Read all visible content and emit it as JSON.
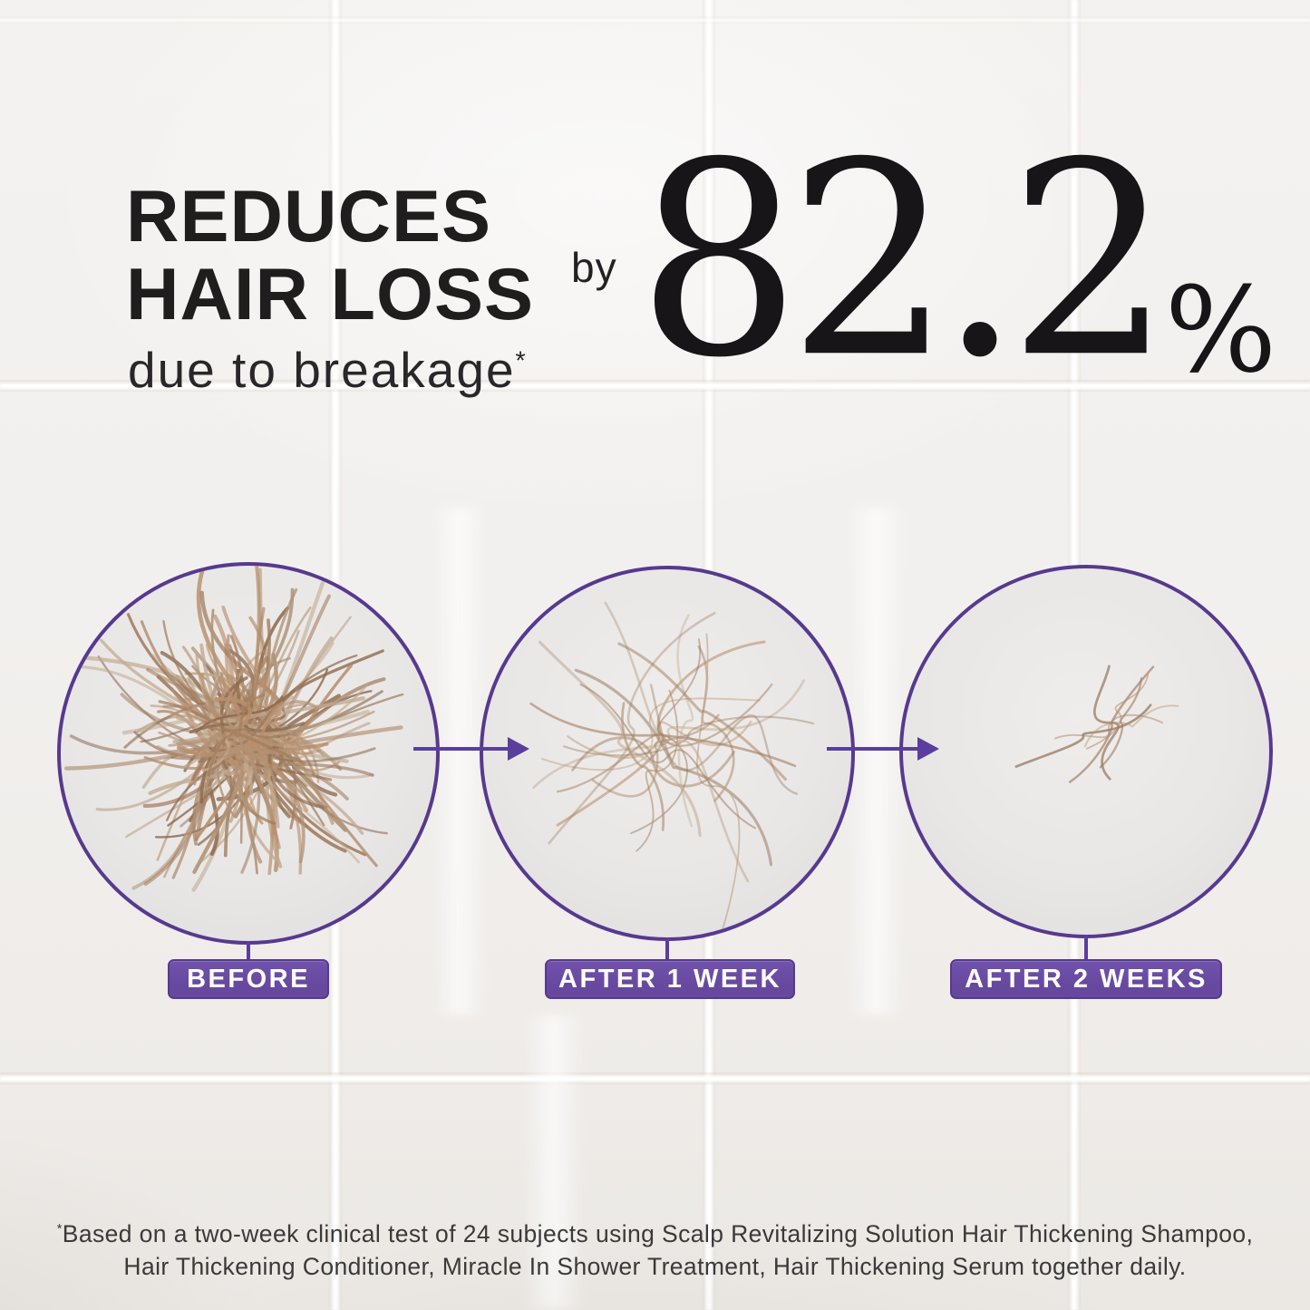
{
  "headline": {
    "line1": "REDUCES",
    "line2": "HAIR LOSS",
    "subline": "due to breakage",
    "footnote_marker": "*"
  },
  "stat": {
    "preposition": "by",
    "value": "82.2",
    "unit": "%"
  },
  "stages": [
    {
      "label": "BEFORE",
      "hair_strands": 85
    },
    {
      "label": "AFTER 1 WEEK",
      "hair_strands": 22
    },
    {
      "label": "AFTER 2 WEEKS",
      "hair_strands": 7
    }
  ],
  "footnote": {
    "marker": "*",
    "line1": "Based on a two-week clinical test of 24 subjects using Scalp Revitalizing Solution Hair Thickening Shampoo,",
    "line2": "Hair Thickening Conditioner, Miracle In Shower Treatment, Hair Thickening Serum together daily."
  },
  "colors": {
    "accent_purple": "#57398f",
    "arrow_purple": "#5b3d9e",
    "label_purple": "#67489f",
    "hair_palette": [
      "#a17d5f",
      "#b29377",
      "#8d6b4f",
      "#c0a98f",
      "#b78f6d"
    ]
  }
}
